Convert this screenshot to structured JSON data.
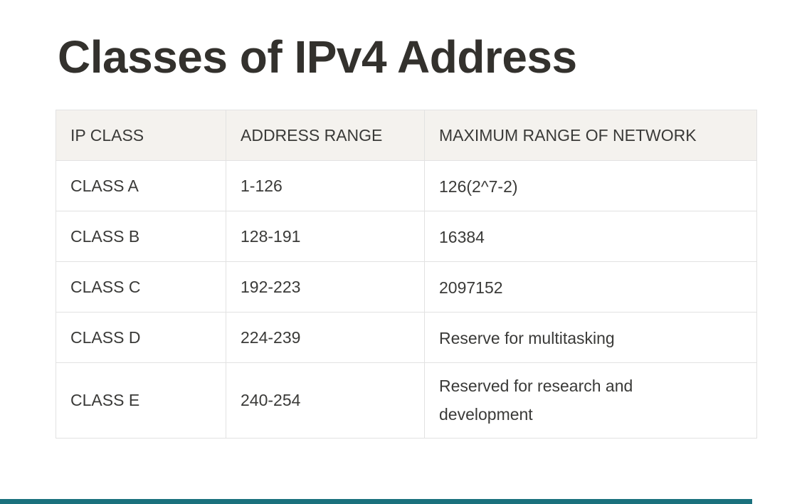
{
  "page": {
    "title": "Classes of IPv4 Address"
  },
  "table": {
    "headers": [
      "IP CLASS",
      "ADDRESS RANGE",
      "MAXIMUM RANGE OF NETWORK"
    ],
    "rows": [
      [
        "CLASS A",
        "1-126",
        "126(2^7-2)"
      ],
      [
        "CLASS B",
        "128-191",
        "16384"
      ],
      [
        "CLASS C",
        "192-223",
        "2097152"
      ],
      [
        "CLASS D",
        "224-239",
        "Reserve for multitasking"
      ],
      [
        "CLASS E",
        "240-254",
        "Reserved for research and development"
      ]
    ]
  },
  "colors": {
    "heading_text": "#33312d",
    "body_text": "#3a3a38",
    "table_header_bg": "#f4f2ee",
    "table_border": "#e2e2e2",
    "page_bg": "#ffffff",
    "bottom_bar": "#1a717d"
  }
}
